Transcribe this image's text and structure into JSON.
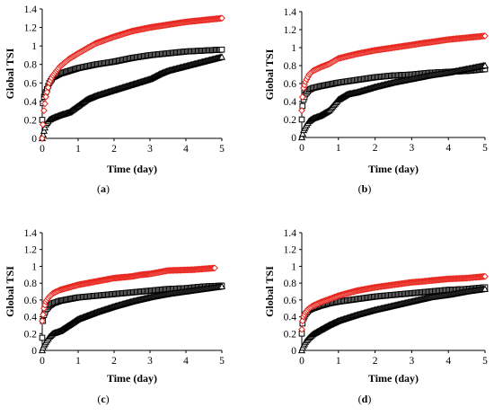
{
  "chart_data": [
    {
      "type": "scatter",
      "panel": "(a)",
      "panel_letter": "a",
      "xlabel": "Time (day)",
      "ylabel": "Global TSI",
      "xlim": [
        0,
        5
      ],
      "ylim": [
        0,
        1.4
      ],
      "xticks": [
        "0",
        "1",
        "2",
        "3",
        "4",
        "5"
      ],
      "yticks": [
        "0",
        "0.2",
        "0.4",
        "0.6",
        "0.8",
        "1",
        "1.2",
        "1.4"
      ],
      "grid": false,
      "legend": "none",
      "series": [
        {
          "marker": "diamond",
          "color": "#e8261e",
          "x": [
            0,
            0.02,
            0.05,
            0.1,
            0.2,
            0.3,
            0.5,
            0.75,
            1,
            1.5,
            2,
            2.5,
            3,
            3.5,
            4,
            4.5,
            5
          ],
          "y": [
            0,
            0.15,
            0.3,
            0.45,
            0.6,
            0.68,
            0.78,
            0.86,
            0.92,
            1.03,
            1.1,
            1.16,
            1.2,
            1.23,
            1.26,
            1.28,
            1.3
          ]
        },
        {
          "marker": "square",
          "color": "#000000",
          "x": [
            0,
            0.02,
            0.05,
            0.1,
            0.2,
            0.3,
            0.5,
            0.75,
            1,
            1.5,
            2,
            2.5,
            3,
            3.5,
            4,
            4.5,
            5
          ],
          "y": [
            0.2,
            0.38,
            0.45,
            0.5,
            0.6,
            0.66,
            0.7,
            0.73,
            0.76,
            0.8,
            0.83,
            0.87,
            0.9,
            0.92,
            0.94,
            0.95,
            0.96
          ]
        },
        {
          "marker": "triangle",
          "color": "#000000",
          "x": [
            0,
            0.05,
            0.1,
            0.2,
            0.3,
            0.5,
            0.75,
            1,
            1.25,
            1.5,
            2,
            2.5,
            3,
            3.3,
            3.5,
            4,
            4.5,
            5
          ],
          "y": [
            0,
            0.08,
            0.15,
            0.2,
            0.22,
            0.25,
            0.28,
            0.35,
            0.42,
            0.46,
            0.52,
            0.58,
            0.64,
            0.7,
            0.73,
            0.78,
            0.83,
            0.88
          ]
        }
      ]
    },
    {
      "type": "scatter",
      "panel": "(b)",
      "panel_letter": "b",
      "xlabel": "Time (day)",
      "ylabel": "Global TSI",
      "xlim": [
        0,
        5
      ],
      "ylim": [
        0,
        1.4
      ],
      "xticks": [
        "0",
        "1",
        "2",
        "3",
        "4",
        "5"
      ],
      "yticks": [
        "0",
        "0.2",
        "0.4",
        "0.6",
        "0.8",
        "1",
        "1.2",
        "1.4"
      ],
      "grid": false,
      "legend": "none",
      "series": [
        {
          "marker": "diamond",
          "color": "#e8261e",
          "x": [
            0,
            0.02,
            0.05,
            0.1,
            0.2,
            0.3,
            0.5,
            0.75,
            1,
            1.5,
            2,
            2.5,
            3,
            3.3,
            3.5,
            4,
            4.5,
            5
          ],
          "y": [
            0.3,
            0.45,
            0.55,
            0.62,
            0.7,
            0.74,
            0.78,
            0.82,
            0.88,
            0.93,
            0.97,
            1.0,
            1.03,
            1.05,
            1.06,
            1.09,
            1.11,
            1.13
          ]
        },
        {
          "marker": "square",
          "color": "#000000",
          "x": [
            0,
            0.02,
            0.05,
            0.1,
            0.2,
            0.3,
            0.5,
            0.75,
            1,
            1.5,
            2,
            2.5,
            3,
            3.5,
            4,
            4.5,
            5
          ],
          "y": [
            0.2,
            0.35,
            0.42,
            0.48,
            0.53,
            0.55,
            0.57,
            0.59,
            0.61,
            0.64,
            0.67,
            0.69,
            0.7,
            0.72,
            0.73,
            0.74,
            0.76
          ]
        },
        {
          "marker": "triangle",
          "color": "#000000",
          "x": [
            0,
            0.05,
            0.1,
            0.2,
            0.3,
            0.5,
            0.75,
            1,
            1.25,
            1.5,
            2,
            2.5,
            3,
            3.5,
            4,
            4.5,
            5
          ],
          "y": [
            0,
            0.08,
            0.12,
            0.18,
            0.21,
            0.24,
            0.3,
            0.42,
            0.48,
            0.5,
            0.56,
            0.61,
            0.65,
            0.69,
            0.72,
            0.76,
            0.8
          ]
        }
      ]
    },
    {
      "type": "scatter",
      "panel": "(c)",
      "panel_letter": "c",
      "xlabel": "Time (day)",
      "ylabel": "Global TSI",
      "xlim": [
        0,
        5
      ],
      "ylim": [
        0,
        1.4
      ],
      "xticks": [
        "0",
        "1",
        "2",
        "3",
        "4",
        "5"
      ],
      "yticks": [
        "0",
        "0.2",
        "0.4",
        "0.6",
        "0.8",
        "1",
        "1.2",
        "1.4"
      ],
      "grid": false,
      "legend": "none",
      "series": [
        {
          "marker": "diamond",
          "color": "#e8261e",
          "x": [
            0,
            0.05,
            0.1,
            0.2,
            0.3,
            0.5,
            0.75,
            1,
            1.25,
            1.5,
            1.75,
            2,
            2.25,
            2.5,
            2.75,
            3,
            3.5,
            4.2,
            4.8
          ],
          "y": [
            0.35,
            0.5,
            0.58,
            0.64,
            0.68,
            0.72,
            0.75,
            0.78,
            0.8,
            0.82,
            0.84,
            0.86,
            0.87,
            0.88,
            0.9,
            0.91,
            0.95,
            0.96,
            0.98
          ]
        },
        {
          "marker": "square",
          "color": "#000000",
          "x": [
            0,
            0.02,
            0.05,
            0.1,
            0.2,
            0.3,
            0.5,
            0.75,
            1,
            1.5,
            2,
            2.5,
            3,
            3.5,
            4,
            4.5,
            5
          ],
          "y": [
            0.15,
            0.35,
            0.42,
            0.48,
            0.53,
            0.56,
            0.59,
            0.61,
            0.63,
            0.65,
            0.67,
            0.69,
            0.71,
            0.73,
            0.74,
            0.76,
            0.77
          ]
        },
        {
          "marker": "triangle",
          "color": "#000000",
          "x": [
            0,
            0.05,
            0.1,
            0.2,
            0.3,
            0.5,
            0.75,
            1,
            1.5,
            2,
            2.5,
            3,
            3.5,
            4,
            4.5,
            5
          ],
          "y": [
            0,
            0.06,
            0.1,
            0.16,
            0.2,
            0.23,
            0.3,
            0.37,
            0.45,
            0.52,
            0.58,
            0.63,
            0.67,
            0.7,
            0.73,
            0.76
          ]
        }
      ]
    },
    {
      "type": "scatter",
      "panel": "(d)",
      "panel_letter": "d",
      "xlabel": "Time (day)",
      "ylabel": "Global TSI",
      "xlim": [
        0,
        5
      ],
      "ylim": [
        0,
        1.4
      ],
      "xticks": [
        "0",
        "1",
        "2",
        "3",
        "4",
        "5"
      ],
      "yticks": [
        "0",
        "0.2",
        "0.4",
        "0.6",
        "0.8",
        "1",
        "1.2",
        "1.4"
      ],
      "grid": false,
      "legend": "none",
      "series": [
        {
          "marker": "diamond",
          "color": "#e8261e",
          "x": [
            0,
            0.02,
            0.05,
            0.1,
            0.2,
            0.3,
            0.5,
            0.75,
            1,
            1.5,
            2,
            2.5,
            3,
            3.3,
            3.5,
            4,
            4.5,
            5
          ],
          "y": [
            0.25,
            0.35,
            0.4,
            0.45,
            0.5,
            0.53,
            0.57,
            0.61,
            0.65,
            0.71,
            0.75,
            0.78,
            0.81,
            0.82,
            0.83,
            0.85,
            0.86,
            0.88
          ]
        },
        {
          "marker": "square",
          "color": "#000000",
          "x": [
            0,
            0.02,
            0.05,
            0.1,
            0.2,
            0.3,
            0.5,
            0.75,
            1,
            1.5,
            2,
            2.5,
            3,
            3.5,
            4,
            4.5,
            5
          ],
          "y": [
            0.2,
            0.32,
            0.38,
            0.43,
            0.48,
            0.5,
            0.53,
            0.56,
            0.58,
            0.61,
            0.64,
            0.66,
            0.68,
            0.7,
            0.72,
            0.73,
            0.75
          ]
        },
        {
          "marker": "triangle",
          "color": "#000000",
          "x": [
            0,
            0.05,
            0.1,
            0.2,
            0.3,
            0.5,
            0.75,
            1,
            1.5,
            2,
            2.5,
            3,
            3.5,
            4,
            4.5,
            5
          ],
          "y": [
            0,
            0.06,
            0.1,
            0.15,
            0.19,
            0.24,
            0.3,
            0.35,
            0.42,
            0.48,
            0.53,
            0.58,
            0.63,
            0.66,
            0.7,
            0.73
          ]
        }
      ]
    }
  ]
}
